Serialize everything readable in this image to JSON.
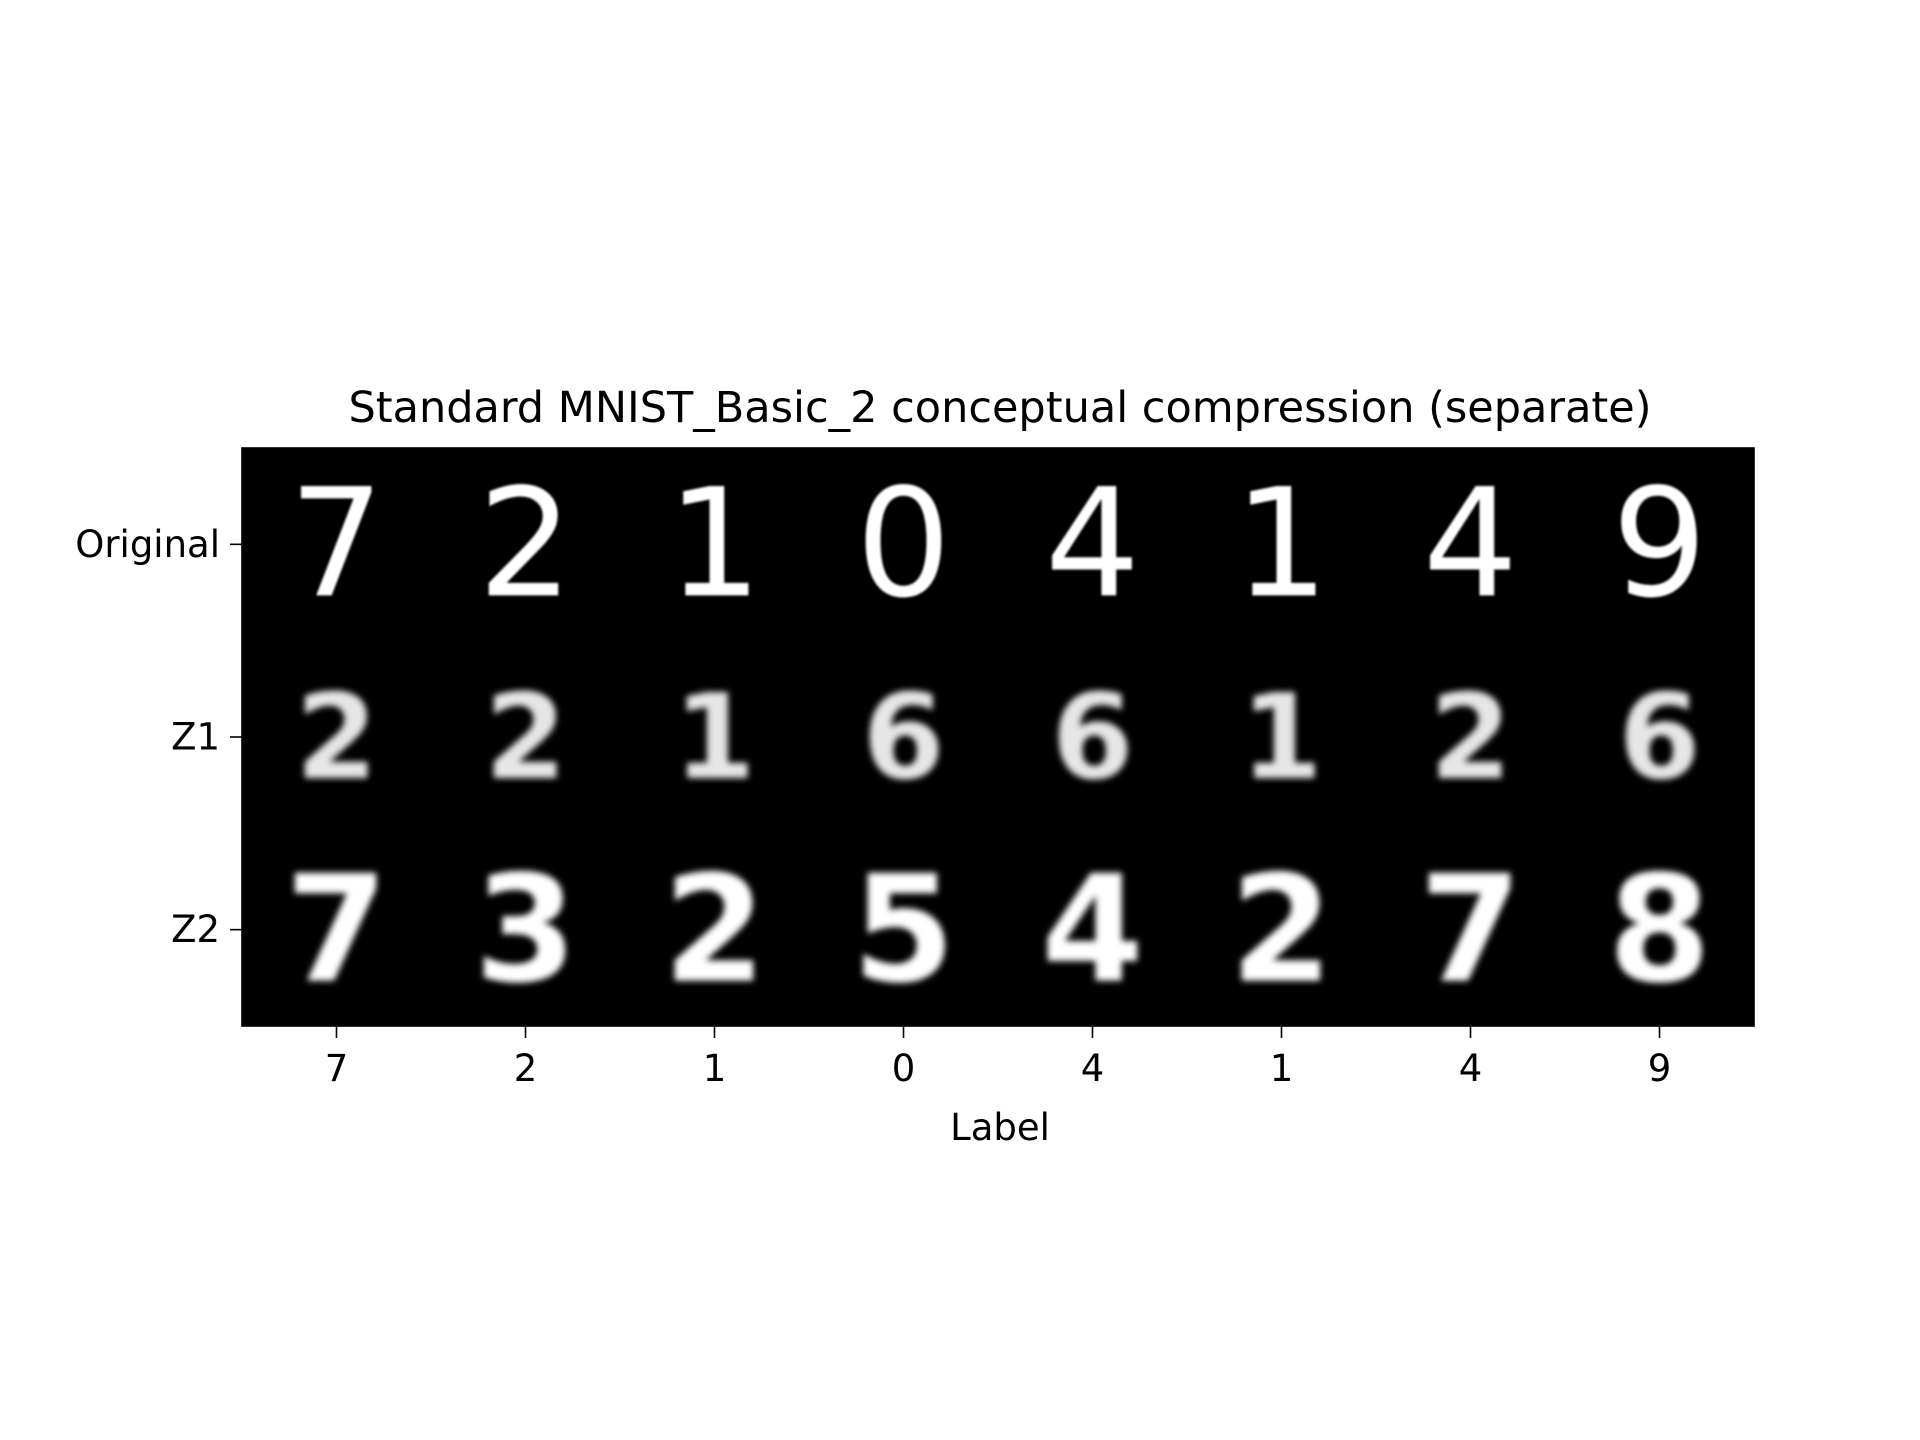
{
  "chart_data": {
    "type": "heatmap",
    "title": "Standard MNIST_Basic_2 conceptual compression (separate)",
    "xlabel": "Label",
    "ylabel": "",
    "x_tick_labels": [
      "7",
      "2",
      "1",
      "0",
      "4",
      "1",
      "4",
      "9"
    ],
    "y_tick_labels": [
      "Original",
      "Z1",
      "Z2"
    ],
    "colormap": "grayscale",
    "background": "#000000",
    "grid": false,
    "legend": "none",
    "cells": [
      {
        "row": "Original",
        "label": "7",
        "glyph": "7",
        "style": "sharp"
      },
      {
        "row": "Original",
        "label": "2",
        "glyph": "2",
        "style": "sharp"
      },
      {
        "row": "Original",
        "label": "1",
        "glyph": "1",
        "style": "sharp"
      },
      {
        "row": "Original",
        "label": "0",
        "glyph": "0",
        "style": "sharp"
      },
      {
        "row": "Original",
        "label": "4",
        "glyph": "4",
        "style": "sharp"
      },
      {
        "row": "Original",
        "label": "1",
        "glyph": "1",
        "style": "sharp"
      },
      {
        "row": "Original",
        "label": "4",
        "glyph": "4",
        "style": "sharp"
      },
      {
        "row": "Original",
        "label": "9",
        "glyph": "9",
        "style": "sharp"
      },
      {
        "row": "Z1",
        "label": "7",
        "glyph": "2",
        "style": "blurry"
      },
      {
        "row": "Z1",
        "label": "2",
        "glyph": "2",
        "style": "blurry"
      },
      {
        "row": "Z1",
        "label": "1",
        "glyph": "1",
        "style": "blurry"
      },
      {
        "row": "Z1",
        "label": "0",
        "glyph": "6",
        "style": "blurry"
      },
      {
        "row": "Z1",
        "label": "4",
        "glyph": "6",
        "style": "blurry"
      },
      {
        "row": "Z1",
        "label": "1",
        "glyph": "1",
        "style": "blurry"
      },
      {
        "row": "Z1",
        "label": "4",
        "glyph": "2",
        "style": "blurry"
      },
      {
        "row": "Z1",
        "label": "9",
        "glyph": "6",
        "style": "blurry"
      },
      {
        "row": "Z2",
        "label": "7",
        "glyph": "7",
        "style": "bold"
      },
      {
        "row": "Z2",
        "label": "2",
        "glyph": "3",
        "style": "bold"
      },
      {
        "row": "Z2",
        "label": "1",
        "glyph": "2",
        "style": "bold"
      },
      {
        "row": "Z2",
        "label": "0",
        "glyph": "5",
        "style": "bold"
      },
      {
        "row": "Z2",
        "label": "4",
        "glyph": "4",
        "style": "bold"
      },
      {
        "row": "Z2",
        "label": "1",
        "glyph": "2",
        "style": "bold"
      },
      {
        "row": "Z2",
        "label": "4",
        "glyph": "7",
        "style": "bold"
      },
      {
        "row": "Z2",
        "label": "9",
        "glyph": "8",
        "style": "bold"
      }
    ]
  }
}
